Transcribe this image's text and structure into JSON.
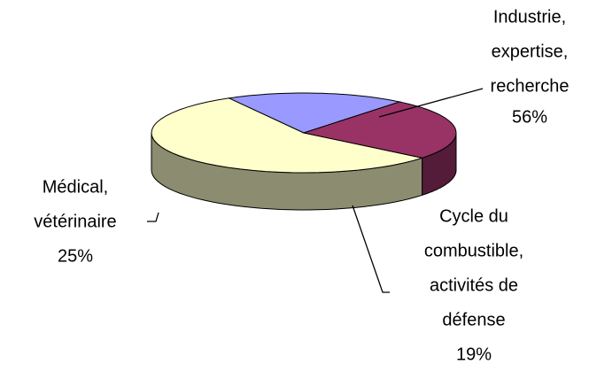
{
  "chart_data": {
    "type": "pie3d",
    "categories": [
      [
        "Industrie,",
        "expertise,",
        "recherche"
      ],
      [
        "Cycle du",
        "combustible,",
        "activités de",
        "défense"
      ],
      [
        "Médical,",
        "vétérinaire"
      ]
    ],
    "values": [
      56,
      19,
      25
    ],
    "value_labels": [
      "56%",
      "19%",
      "25%"
    ],
    "colors": [
      "#ffffcc",
      "#9999ff",
      "#993366"
    ]
  }
}
